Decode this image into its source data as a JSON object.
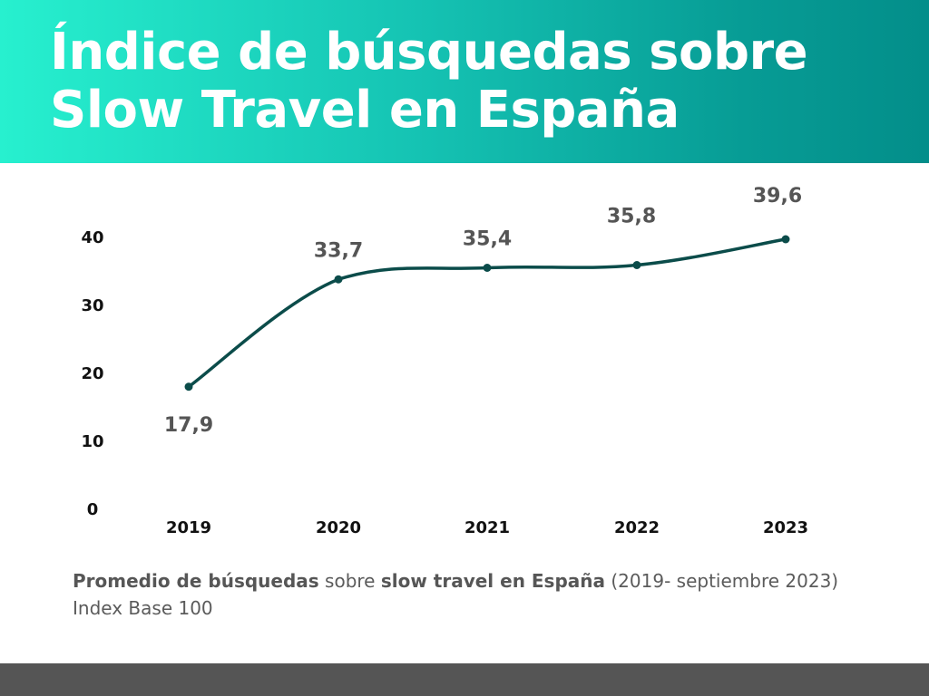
{
  "header": {
    "title_line1": "Índice de búsquedas sobre",
    "title_line2": "Slow Travel en España"
  },
  "chart_data": {
    "type": "line",
    "categories": [
      "2019",
      "2020",
      "2021",
      "2022",
      "2023"
    ],
    "series": [
      {
        "values": [
          17.9,
          33.7,
          35.4,
          35.8,
          39.6
        ]
      }
    ],
    "data_labels": [
      "17,9",
      "33,7",
      "35,4",
      "35,8",
      "39,6"
    ],
    "yticks": [
      "0",
      "10",
      "20",
      "30",
      "40"
    ],
    "ylim": [
      0,
      40
    ],
    "line_color": "#0b4c4a",
    "grid": false,
    "legend": "none",
    "smooth": true
  },
  "caption": {
    "bold1": "Promedio de búsquedas",
    "text1": " sobre ",
    "bold2": "slow travel en España",
    "text2": " (2019- septiembre 2023)",
    "line2": "Index Base 100"
  },
  "colors": {
    "header_gradient": [
      "#27f0cf",
      "#038e8a"
    ],
    "footer_bar": "#555555"
  }
}
